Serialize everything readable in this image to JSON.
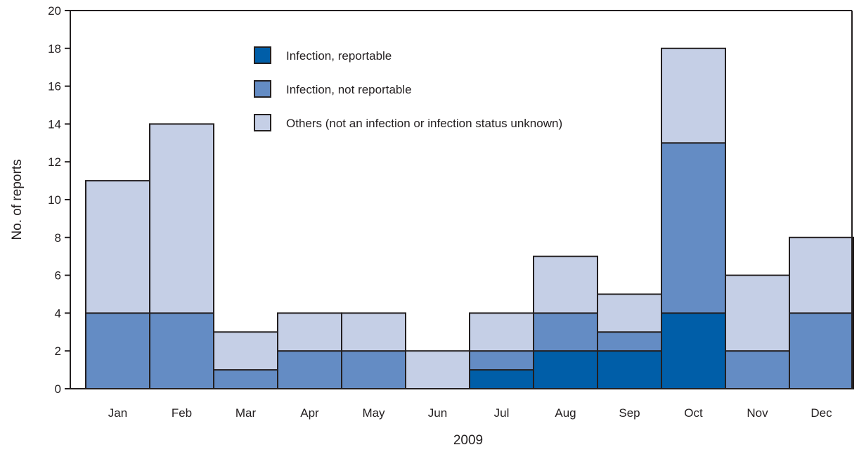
{
  "chart_data": {
    "type": "bar",
    "stacked": true,
    "categories": [
      "Jan",
      "Feb",
      "Mar",
      "Apr",
      "May",
      "Jun",
      "Jul",
      "Aug",
      "Sep",
      "Oct",
      "Nov",
      "Dec"
    ],
    "series": [
      {
        "name": "Infection, reportable",
        "color": "#005ea8",
        "values": [
          0,
          0,
          0,
          0,
          0,
          0,
          1,
          2,
          2,
          4,
          0,
          0
        ]
      },
      {
        "name": "Infection, not reportable",
        "color": "#648cc4",
        "values": [
          4,
          4,
          1,
          2,
          2,
          0,
          1,
          2,
          1,
          9,
          2,
          4
        ]
      },
      {
        "name": "Others (not an infection or infection status unknown)",
        "color": "#c5cfe6",
        "values": [
          7,
          10,
          2,
          2,
          2,
          2,
          2,
          3,
          2,
          5,
          4,
          4
        ]
      }
    ],
    "xlabel": "2009",
    "ylabel": "No. of reports",
    "ylim": [
      0,
      20
    ],
    "yticks": [
      0,
      2,
      4,
      6,
      8,
      10,
      12,
      14,
      16,
      18,
      20
    ],
    "grid": false,
    "legend_position": "top-center"
  }
}
